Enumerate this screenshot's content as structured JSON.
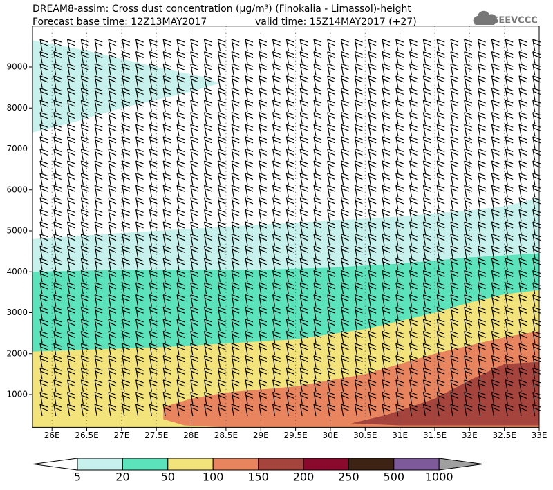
{
  "chart_data": {
    "type": "contour",
    "title": "DREAM8-assim: Cross dust concentration (µg/m³) (Finokalia - Limassol)-height",
    "subtitle": "Forecast base time: 12Z13MAY2017",
    "valid_time": "valid time: 15Z14MAY2017 (+27)",
    "logo": "SEEVCCC",
    "xlim": [
      25.72,
      33
    ],
    "ylim": [
      200,
      10000
    ],
    "xticks": [
      {
        "value": 26,
        "label": "26E"
      },
      {
        "value": 26.5,
        "label": "26.5E"
      },
      {
        "value": 27,
        "label": "27E"
      },
      {
        "value": 27.5,
        "label": "27.5E"
      },
      {
        "value": 28,
        "label": "28E"
      },
      {
        "value": 28.5,
        "label": "28.5E"
      },
      {
        "value": 29,
        "label": "29E"
      },
      {
        "value": 29.5,
        "label": "29.5E"
      },
      {
        "value": 30,
        "label": "30E"
      },
      {
        "value": 30.5,
        "label": "30.5E"
      },
      {
        "value": 31,
        "label": "31E"
      },
      {
        "value": 31.5,
        "label": "31.5E"
      },
      {
        "value": 32,
        "label": "32E"
      },
      {
        "value": 32.5,
        "label": "32.5E"
      },
      {
        "value": 33,
        "label": "33E"
      }
    ],
    "yticks": [
      1000,
      2000,
      3000,
      4000,
      5000,
      6000,
      7000,
      8000,
      9000
    ],
    "grid": true,
    "regions": [
      {
        "color": "#c6f1ec",
        "x": [
          25.72,
          26.5,
          27.5,
          28.2,
          28.4,
          28,
          27,
          26.2,
          25.72
        ],
        "y": [
          9650,
          9400,
          9000,
          8750,
          8600,
          8400,
          8000,
          7600,
          7400
        ]
      },
      {
        "color": "#c6f1ec",
        "x": [
          25.72,
          27,
          28,
          29,
          30,
          31,
          32,
          32.5,
          33,
          33,
          25.72
        ],
        "y": [
          4800,
          4950,
          5050,
          5150,
          5250,
          5350,
          5500,
          5600,
          5800,
          200,
          200
        ]
      },
      {
        "color": "#5be3bc",
        "x": [
          25.72,
          27,
          28,
          29,
          30,
          31,
          32,
          33,
          33,
          25.72
        ],
        "y": [
          4000,
          4050,
          4050,
          4050,
          4100,
          4200,
          4350,
          4450,
          200,
          200
        ]
      },
      {
        "color": "#f3e37b",
        "x": [
          25.72,
          26.5,
          27.5,
          28.5,
          29.5,
          30.5,
          31.5,
          32,
          32.5,
          33,
          33,
          25.72
        ],
        "y": [
          2050,
          2100,
          2150,
          2250,
          2350,
          2600,
          3000,
          3250,
          3450,
          3550,
          200,
          200
        ]
      },
      {
        "color": "#e8855f",
        "x": [
          27.6,
          27.6,
          28,
          28.5,
          29.5,
          30.5,
          31.5,
          32.5,
          33,
          33,
          28.5,
          27.9
        ],
        "y": [
          400,
          700,
          900,
          1050,
          1200,
          1500,
          2000,
          2400,
          2550,
          200,
          200,
          250
        ]
      },
      {
        "color": "#a5443c",
        "x": [
          30.3,
          30.8,
          31.5,
          32,
          32.5,
          33,
          33,
          32,
          31
        ],
        "y": [
          300,
          500,
          900,
          1350,
          1750,
          1800,
          250,
          250,
          250
        ]
      }
    ],
    "colorbar": {
      "levels": [
        5,
        20,
        50,
        100,
        150,
        200,
        250,
        500,
        1000
      ],
      "under_color": "#ffffff",
      "colors": [
        "#c6f1ec",
        "#5be3bc",
        "#f3e37b",
        "#e8855f",
        "#a5443c",
        "#8a0a2e",
        "#3c2314",
        "#7d5a9a"
      ],
      "over_color": "#a0a0a0"
    }
  }
}
